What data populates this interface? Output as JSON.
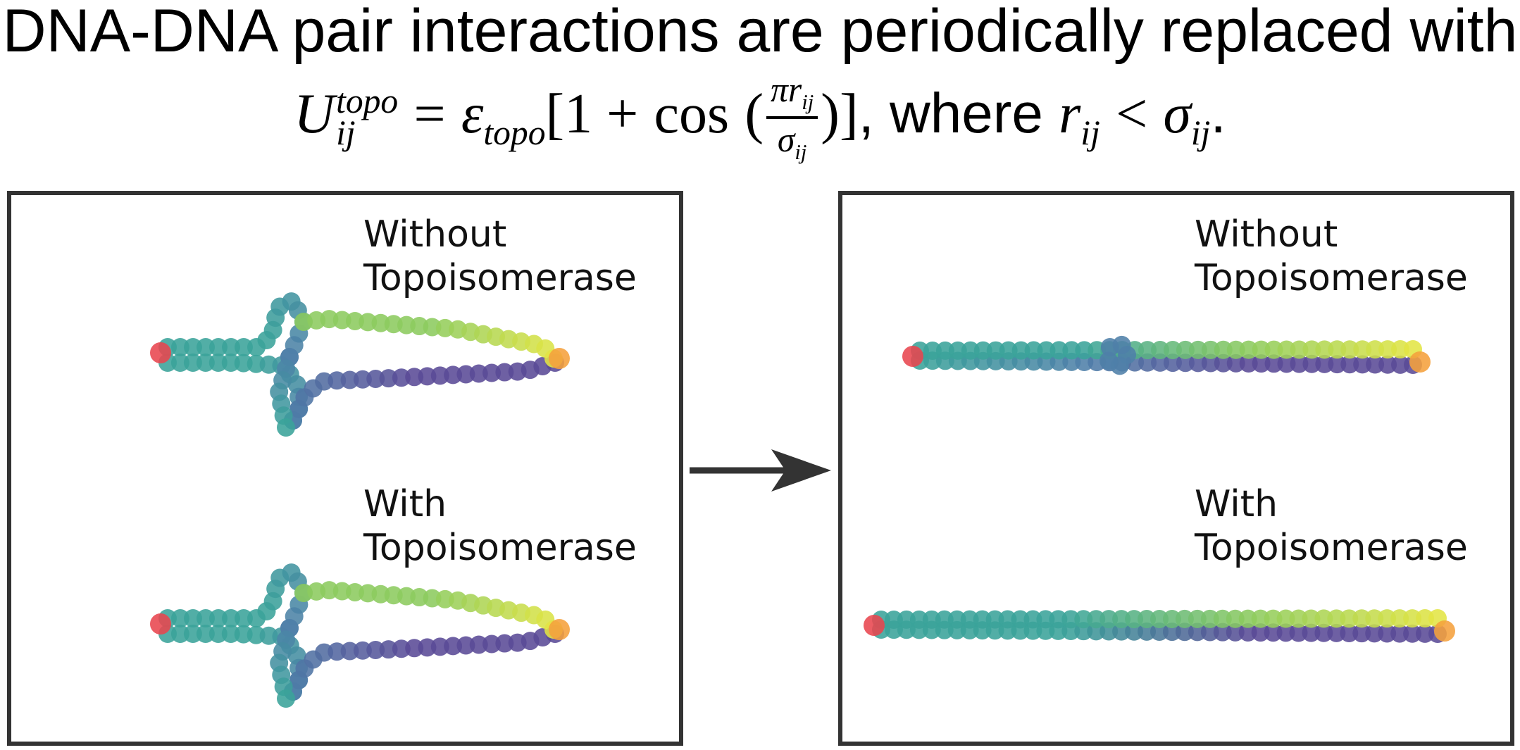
{
  "heading": "DNA-DNA pair interactions are periodically replaced with",
  "formula": {
    "lhs_symbol": "U",
    "lhs_sub": "ij",
    "lhs_sup": "topo",
    "equals": "=",
    "epsilon": "ε",
    "epsilon_sub": "topo",
    "bracket_open": "[1 +",
    "cos": "cos",
    "paren_open": "(",
    "frac_num": "πr",
    "frac_num_sub": "ij",
    "frac_den": "σ",
    "frac_den_sub": "ij",
    "paren_close": ")]",
    "comma_where": ", where",
    "cond_r": "r",
    "cond_r_sub": "ij",
    "cond_lt": "<",
    "cond_sigma": "σ",
    "cond_sigma_sub": "ij",
    "period": "."
  },
  "panels": {
    "before": {
      "top_label": [
        "Without",
        "Topoisomerase"
      ],
      "bottom_label": [
        "With",
        "Topoisomerase"
      ]
    },
    "after": {
      "top_label": [
        "Without",
        "Topoisomerase"
      ],
      "bottom_label": [
        "With",
        "Topoisomerase"
      ]
    }
  },
  "colors": {
    "frame": "#333333",
    "end_red": "#e8464f",
    "end_orange": "#f5a03c",
    "teal": "#3aa39a",
    "blue": "#4e7fa8",
    "green": "#8ccb5e",
    "yellow": "#e2e544",
    "purple": "#5a4a96"
  }
}
